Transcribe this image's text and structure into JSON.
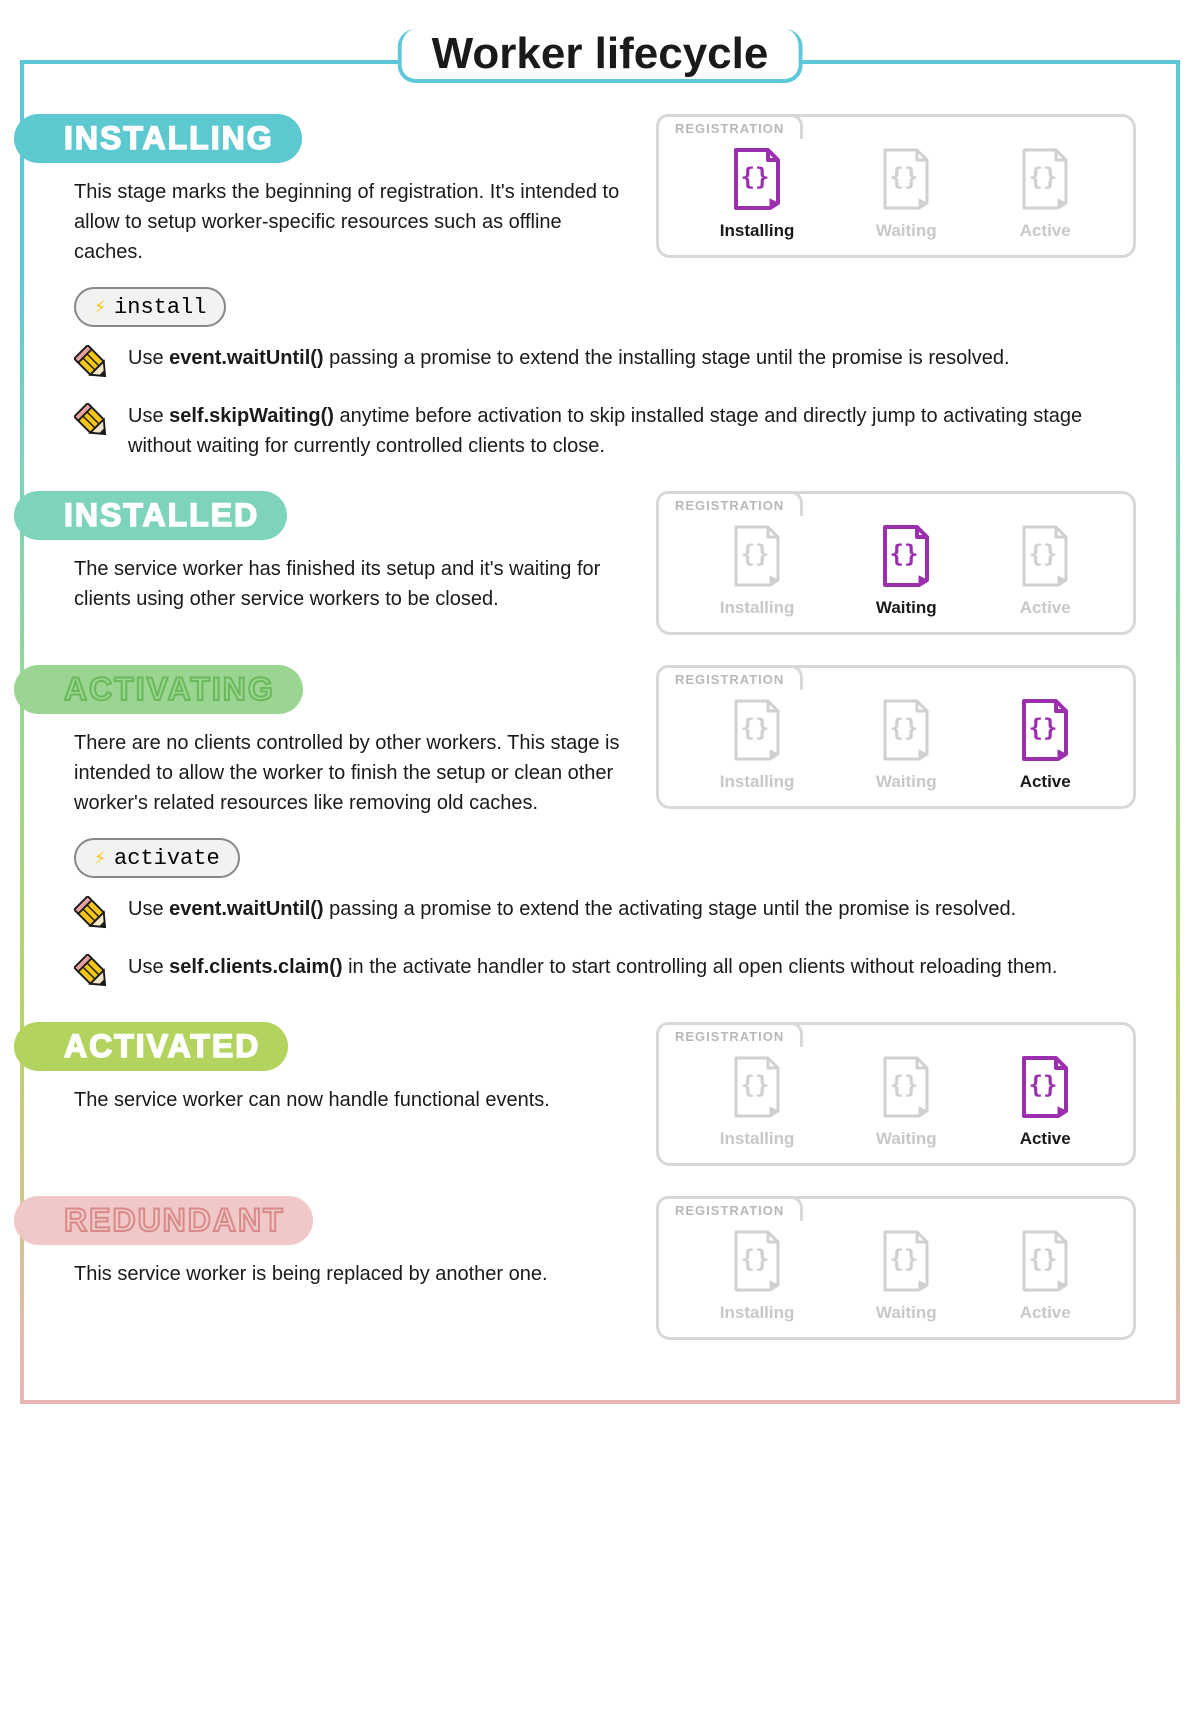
{
  "title": "Worker lifecycle",
  "registration_label": "REGISTRATION",
  "state_labels": {
    "installing": "Installing",
    "waiting": "Waiting",
    "active": "Active"
  },
  "colors": {
    "installing_bg": "#5cc8d0",
    "installed_bg": "#7dd4bb",
    "activating_bg": "#9ad691",
    "activated_bg": "#b2d45e",
    "redundant_bg": "#f0c8c8",
    "redundant_outline": "#d88a8a",
    "activating_outline": "#6bb85a",
    "file_inactive": "#d0d0d0",
    "file_active": "#9b2fae",
    "pencil_fill": "#f5c518",
    "pencil_stroke": "#1a1a1a"
  },
  "stages": [
    {
      "key": "installing",
      "label": "INSTALLING",
      "bg": "#5cc8d0",
      "outlined": false,
      "desc": "This stage marks the beginning of registration. It's intended to allow to setup worker-specific resources such as offline caches.",
      "active_state": "installing",
      "event": "install",
      "tips": [
        {
          "pre": "Use ",
          "bold": "event.waitUntil()",
          "post": " passing a promise to extend the installing stage until the promise is resolved."
        },
        {
          "pre": "Use ",
          "bold": "self.skipWaiting()",
          "post": " anytime before activation to skip installed stage and directly jump to activating stage without waiting for currently controlled clients to close."
        }
      ]
    },
    {
      "key": "installed",
      "label": "INSTALLED",
      "bg": "#7dd4bb",
      "outlined": false,
      "desc": "The service worker has finished its setup and it's waiting for clients using other service workers to be closed.",
      "active_state": "waiting"
    },
    {
      "key": "activating",
      "label": "ACTIVATING",
      "bg": "#9ad691",
      "outlined": true,
      "outline_color": "#6bb85a",
      "desc": "There are no clients controlled by other workers. This stage is intended to allow the worker to finish the setup or clean other worker's related resources like removing old caches.",
      "active_state": "active",
      "event": "activate",
      "tips": [
        {
          "pre": "Use ",
          "bold": "event.waitUntil()",
          "post": " passing a promise to extend the activating stage until the promise is resolved."
        },
        {
          "pre": "Use ",
          "bold": "self.clients.claim()",
          "post": "  in the activate handler to start controlling all open clients without reloading them."
        }
      ]
    },
    {
      "key": "activated",
      "label": "ACTIVATED",
      "bg": "#b2d45e",
      "outlined": false,
      "desc": "The service worker can now handle functional events.",
      "active_state": "active"
    },
    {
      "key": "redundant",
      "label": "REDUNDANT",
      "bg": "#f0c8c8",
      "outlined": true,
      "outline_color": "#d88a8a",
      "desc": "This service worker is being replaced by another one.",
      "active_state": "none"
    }
  ]
}
